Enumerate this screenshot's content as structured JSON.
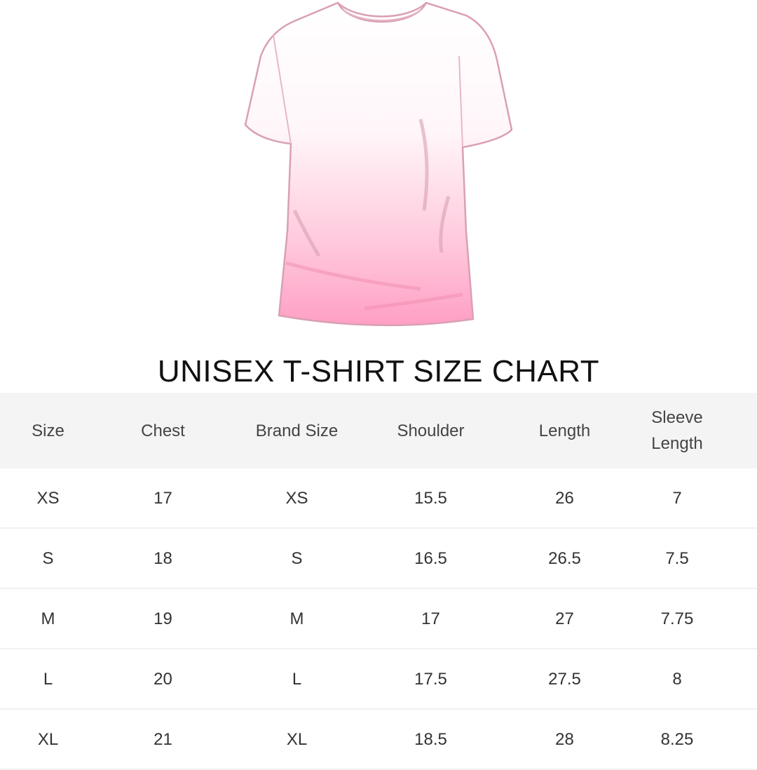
{
  "title": "UNISEX T-SHIRT SIZE CHART",
  "colors": {
    "shirt_top": "#ffffff",
    "shirt_bottom": "#ff9fc4",
    "outline": "#d9a0b4",
    "header_bg": "#f4f4f4"
  },
  "table": {
    "headers": [
      "Size",
      "Chest",
      "Brand Size",
      "Shoulder",
      "Length",
      "Sleeve Length"
    ],
    "rows": [
      [
        "XS",
        "17",
        "XS",
        "15.5",
        "26",
        "7"
      ],
      [
        "S",
        "18",
        "S",
        "16.5",
        "26.5",
        "7.5"
      ],
      [
        "M",
        "19",
        "M",
        "17",
        "27",
        "7.75"
      ],
      [
        "L",
        "20",
        "L",
        "17.5",
        "27.5",
        "8"
      ],
      [
        "XL",
        "21",
        "XL",
        "18.5",
        "28",
        "8.25"
      ]
    ]
  }
}
